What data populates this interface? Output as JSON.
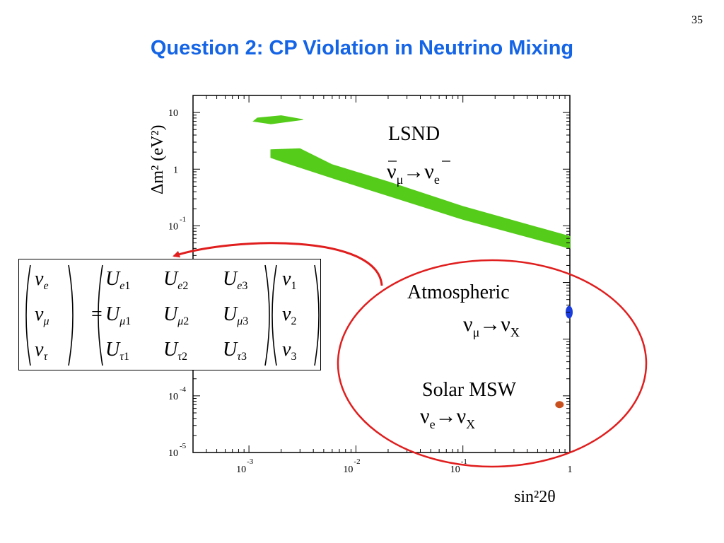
{
  "slide": {
    "number": "35",
    "title": "Question 2:  CP Violation in Neutrino Mixing"
  },
  "chart_data": {
    "type": "scatter",
    "xlabel": "sin²2θ",
    "ylabel": "Δm² (eV²)",
    "x_scale": "log",
    "y_scale": "log",
    "xlim": [
      0.0003,
      1
    ],
    "ylim": [
      1e-05,
      20
    ],
    "x_ticks": [
      {
        "value": 0.001,
        "base": "10",
        "exp": "-3"
      },
      {
        "value": 0.01,
        "base": "10",
        "exp": "-2"
      },
      {
        "value": 0.1,
        "base": "10",
        "exp": "-1"
      },
      {
        "value": 1,
        "base": "1",
        "exp": ""
      }
    ],
    "y_ticks": [
      {
        "value": 10,
        "base": "10",
        "exp": ""
      },
      {
        "value": 1,
        "base": "1",
        "exp": ""
      },
      {
        "value": 0.1,
        "base": "10",
        "exp": "-1"
      },
      {
        "value": 0.0001,
        "base": "10",
        "exp": "-4"
      },
      {
        "value": 1e-05,
        "base": "10",
        "exp": "-5"
      }
    ],
    "grid": false,
    "regions": [
      {
        "label": "LSND",
        "channel": {
          "from": "ν̄μ",
          "to": "ν̄e"
        },
        "color": "#55cc1a",
        "upper_island": [
          [
            0.0012,
            8.0
          ],
          [
            0.002,
            8.8
          ],
          [
            0.0032,
            7.5
          ],
          [
            0.0016,
            6.3
          ],
          [
            0.0011,
            7.0
          ]
        ],
        "band_upper": [
          [
            0.0016,
            2.2
          ],
          [
            0.003,
            2.3
          ],
          [
            0.006,
            1.2
          ],
          [
            0.02,
            0.6
          ],
          [
            0.1,
            0.22
          ],
          [
            1,
            0.065
          ]
        ],
        "band_lower": [
          [
            0.0016,
            1.6
          ],
          [
            0.0022,
            1.3
          ],
          [
            0.006,
            0.7
          ],
          [
            0.02,
            0.34
          ],
          [
            0.1,
            0.13
          ],
          [
            1,
            0.04
          ]
        ]
      },
      {
        "label": "Atmospheric",
        "channel": {
          "from": "νμ",
          "to": "νX"
        },
        "color": "#1a3cdc",
        "point": [
          1.0,
          0.003
        ]
      },
      {
        "label": "Solar MSW",
        "channel": {
          "from": "νe",
          "to": "νX"
        },
        "color": "#c8501e",
        "point": [
          0.8,
          7e-05
        ]
      }
    ],
    "annotations": {
      "circle_color": "#e01e1e",
      "arrow_color": "#e01e1e"
    }
  },
  "matrix": {
    "lhs": [
      {
        "sym": "ν",
        "sub": "e"
      },
      {
        "sym": "ν",
        "sub": "μ"
      },
      {
        "sym": "ν",
        "sub": "τ"
      }
    ],
    "equals": "=",
    "U": [
      [
        {
          "sym": "U",
          "sub": "e",
          "n": "1"
        },
        {
          "sym": "U",
          "sub": "e",
          "n": "2"
        },
        {
          "sym": "U",
          "sub": "e",
          "n": "3"
        }
      ],
      [
        {
          "sym": "U",
          "sub": "μ",
          "n": "1"
        },
        {
          "sym": "U",
          "sub": "μ",
          "n": "2"
        },
        {
          "sym": "U",
          "sub": "μ",
          "n": "3"
        }
      ],
      [
        {
          "sym": "U",
          "sub": "τ",
          "n": "1"
        },
        {
          "sym": "U",
          "sub": "τ",
          "n": "2"
        },
        {
          "sym": "U",
          "sub": "τ",
          "n": "3"
        }
      ]
    ],
    "rhs": [
      {
        "sym": "ν",
        "n": "1"
      },
      {
        "sym": "ν",
        "n": "2"
      },
      {
        "sym": "ν",
        "n": "3"
      }
    ]
  }
}
